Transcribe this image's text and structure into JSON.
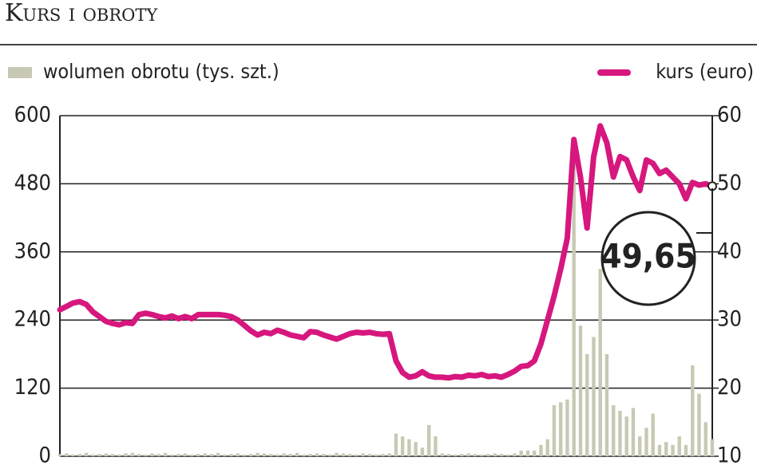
{
  "chart_data": {
    "type": "bar-line",
    "title": "Kurs i obroty",
    "annotation": "49,65",
    "series": [
      {
        "name": "wolumen obrotu (tys. szt.)",
        "type": "bar",
        "color": "#c8c9b4",
        "values": [
          4,
          5,
          3,
          4,
          6,
          3,
          4,
          5,
          4,
          3,
          5,
          6,
          4,
          3,
          5,
          4,
          6,
          3,
          4,
          5,
          3,
          4,
          5,
          4,
          6,
          3,
          4,
          5,
          3,
          4,
          6,
          5,
          4,
          3,
          5,
          4,
          6,
          3,
          4,
          5,
          4,
          3,
          6,
          5,
          4,
          3,
          5,
          4,
          3,
          4,
          5,
          40,
          35,
          30,
          25,
          15,
          55,
          35,
          5,
          4,
          3,
          4,
          5,
          4,
          3,
          4,
          5,
          4,
          3,
          5,
          10,
          10,
          10,
          20,
          30,
          90,
          95,
          100,
          560,
          230,
          180,
          210,
          330,
          180,
          90,
          80,
          70,
          85,
          35,
          50,
          75,
          20,
          25,
          20,
          35,
          20,
          160,
          110,
          60,
          30
        ]
      },
      {
        "name": "kurs (euro)",
        "type": "line",
        "axis": "y2",
        "color": "#d6177d",
        "values": [
          31.5,
          32,
          32.5,
          32.7,
          32.3,
          31.2,
          30.5,
          29.8,
          29.5,
          29.3,
          29.6,
          29.5,
          30.8,
          31,
          30.8,
          30.5,
          30.3,
          30.6,
          30.2,
          30.5,
          30.2,
          30.8,
          30.8,
          30.8,
          30.8,
          30.7,
          30.5,
          30,
          29.2,
          28.4,
          27.8,
          28.2,
          28,
          28.5,
          28.2,
          27.8,
          27.6,
          27.4,
          28.3,
          28.2,
          27.8,
          27.5,
          27.2,
          27.6,
          28,
          28.2,
          28.1,
          28.2,
          28,
          27.9,
          28,
          24,
          22.3,
          21.6,
          21.8,
          22.4,
          21.8,
          21.6,
          21.6,
          21.5,
          21.7,
          21.6,
          21.9,
          21.8,
          22,
          21.7,
          21.8,
          21.6,
          22,
          22.5,
          23.2,
          23.3,
          24,
          26.5,
          30,
          33.5,
          37.5,
          42,
          56.5,
          51,
          43.5,
          54,
          58.5,
          56,
          51,
          54,
          53.5,
          51,
          49,
          53.5,
          53,
          51.5,
          52,
          51,
          50,
          47.8,
          50.2,
          49.8,
          50,
          49.65
        ]
      }
    ],
    "ylim": [
      0,
      600
    ],
    "yticks": [
      0,
      120,
      240,
      360,
      480,
      600
    ],
    "y2lim": [
      10,
      60
    ],
    "y2ticks": [
      10,
      20,
      30,
      40,
      50,
      60
    ],
    "grid": true
  }
}
